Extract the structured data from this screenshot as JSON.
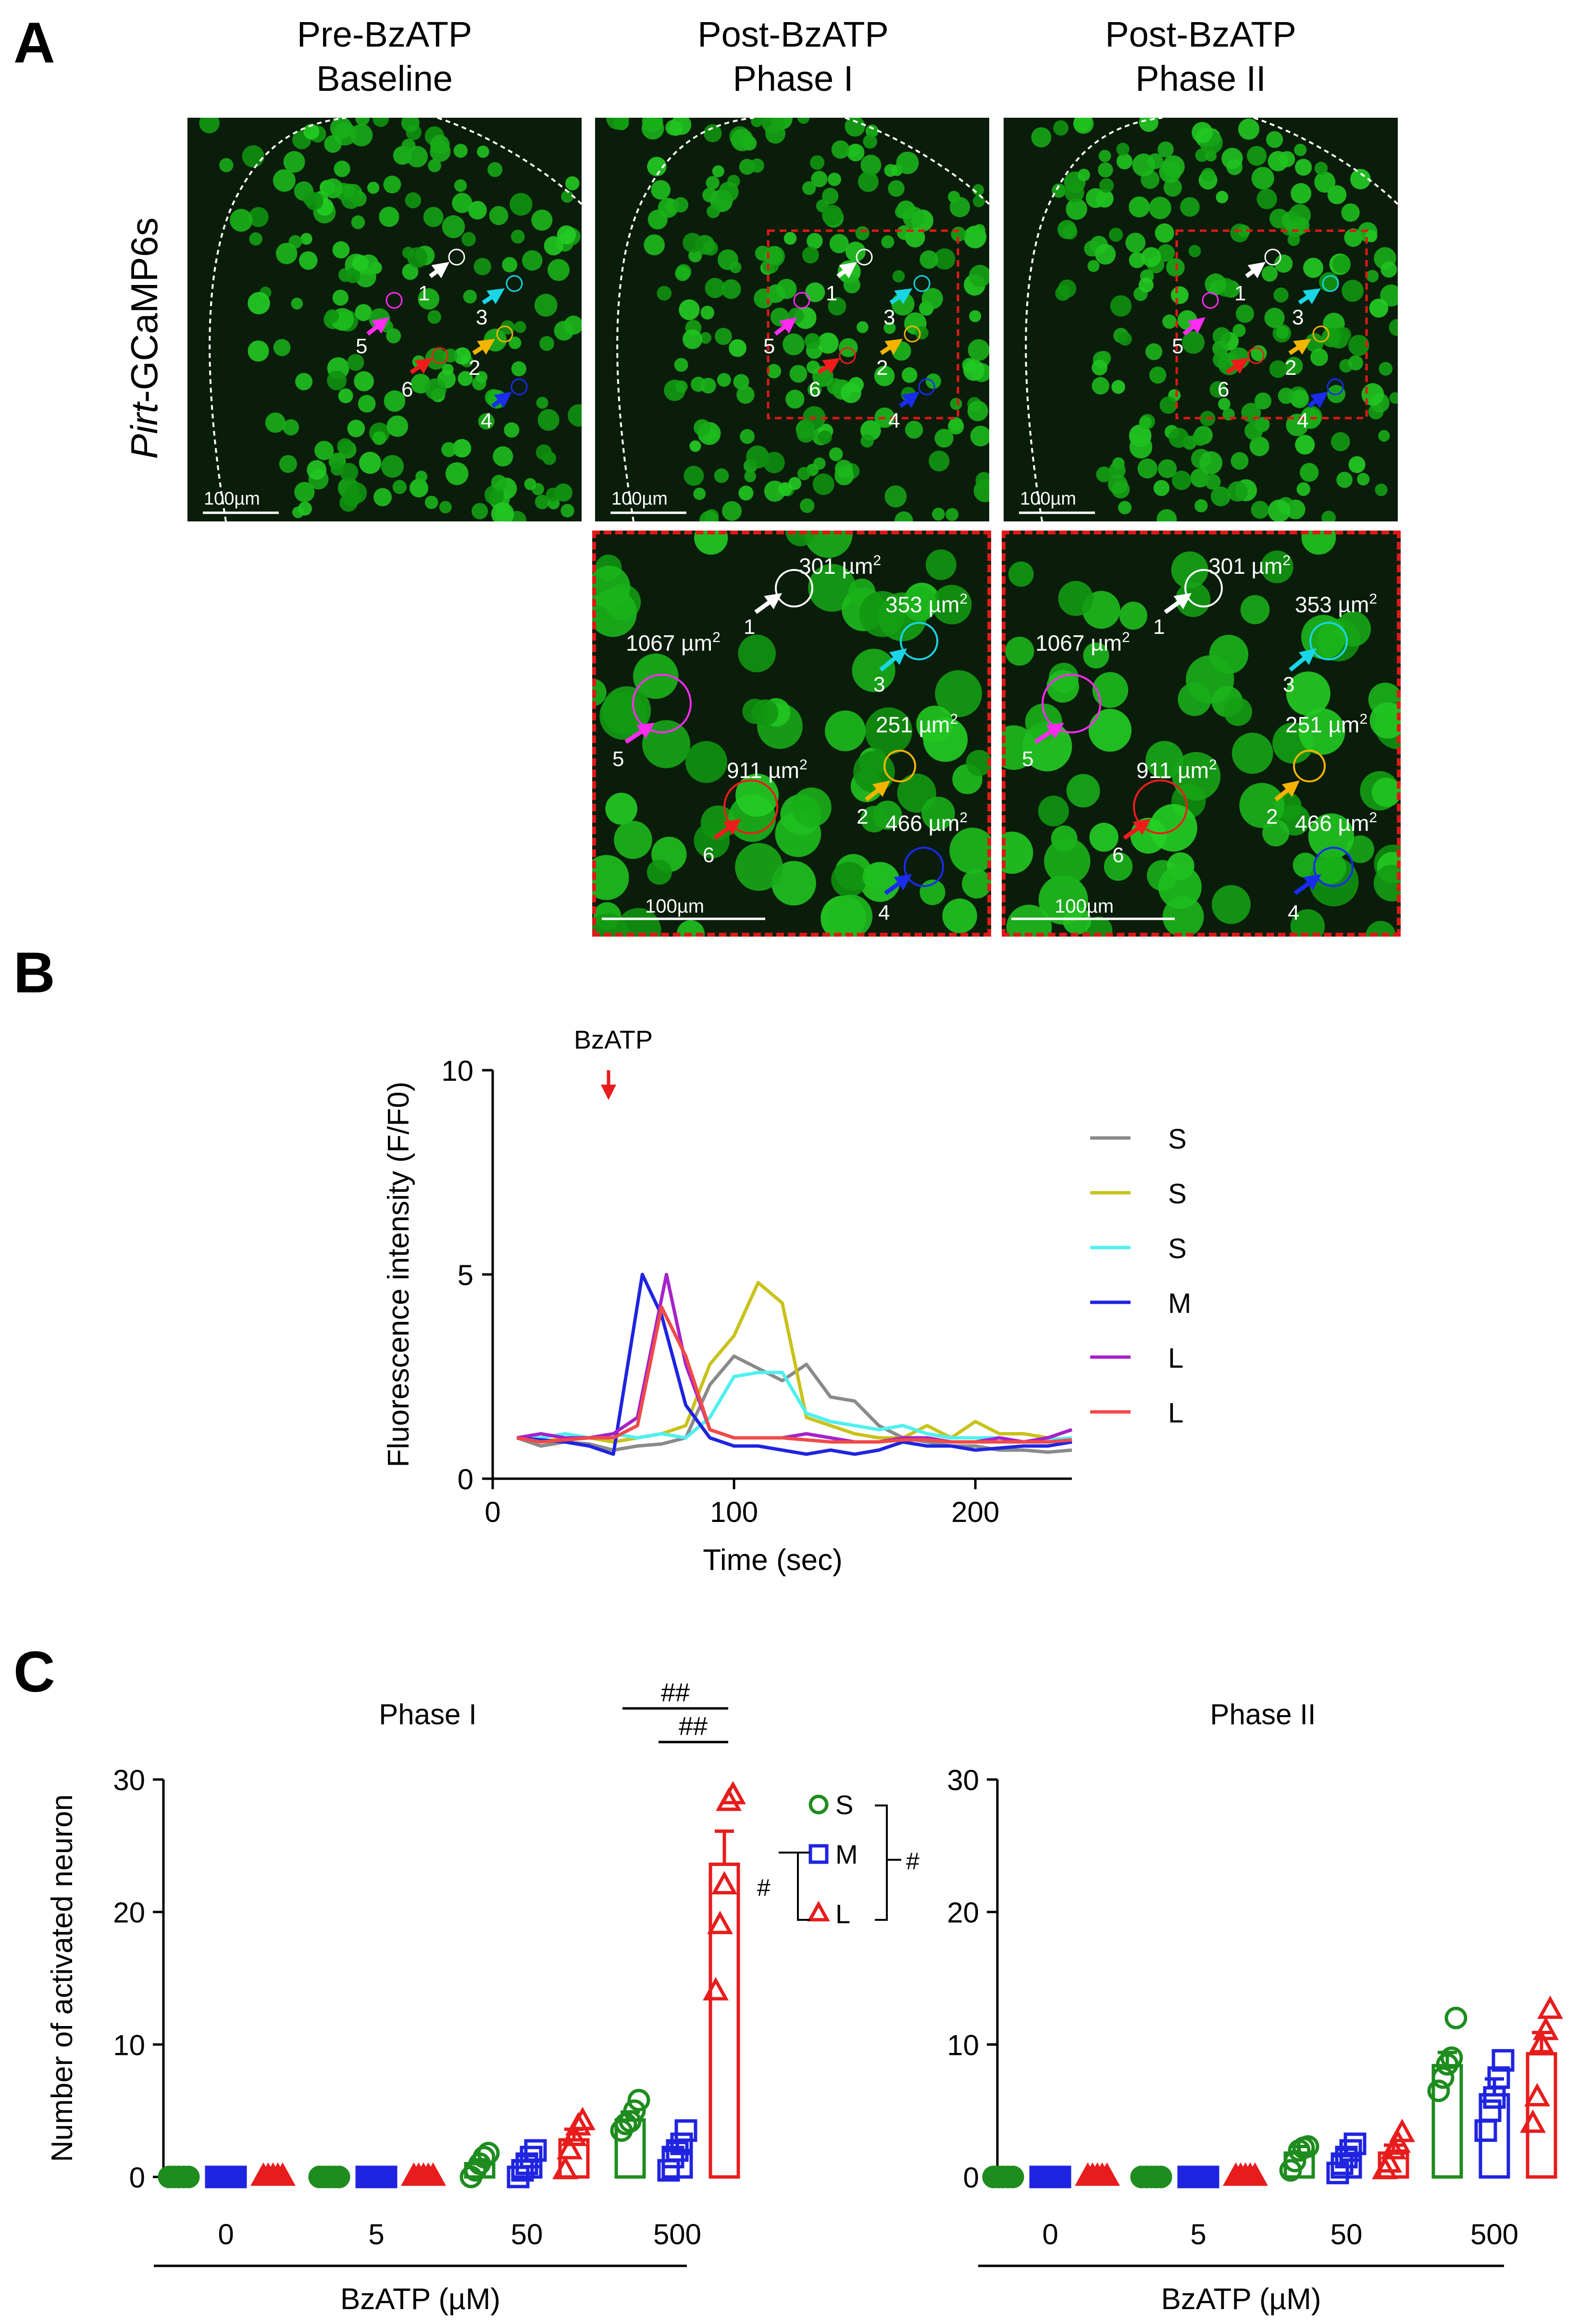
{
  "panels": {
    "a": "A",
    "b": "B",
    "c": "C"
  },
  "panel_a": {
    "row_label_italic": "Pirt",
    "row_label_rest": "-GCaMP6s",
    "columns": [
      {
        "line1": "Pre-BzATP",
        "line2": "Baseline"
      },
      {
        "line1": "Post-BzATP",
        "line2": "Phase I"
      },
      {
        "line1": "Post-BzATP",
        "line2": "Phase II"
      }
    ],
    "scale_bar": "100µm",
    "neuron_numbers": [
      "1",
      "2",
      "3",
      "4",
      "5",
      "6"
    ],
    "areas": {
      "n1": "301 µm",
      "n3": "353 µm",
      "n2": "251 µm",
      "n4": "466 µm",
      "n5": "1067 µm",
      "n6": "911 µm"
    },
    "area_superscript": "2",
    "colors": {
      "n1": "#ffffff",
      "n2": "#f5b400",
      "n3": "#19d6e6",
      "n4": "#1a2cf0",
      "n5": "#ff2bf2",
      "n6": "#f01c1c",
      "tissue": "#1f7d1f",
      "box": "#e01818"
    }
  },
  "chart_data": [
    {
      "type": "line",
      "title": "",
      "xlabel": "Time (sec)",
      "ylabel": "Fluorescence intensity (F/F0)",
      "xlim": [
        0,
        240
      ],
      "ylim": [
        0,
        10
      ],
      "xticks": [
        0,
        100,
        200
      ],
      "yticks": [
        0,
        5,
        10
      ],
      "annotation": {
        "label": "BzATP",
        "x": 48,
        "color": "#e81c1c"
      },
      "legend_position": "right",
      "series": [
        {
          "name": "S",
          "color": "#8a8a8a",
          "x": [
            10,
            20,
            30,
            40,
            50,
            60,
            70,
            80,
            90,
            100,
            110,
            120,
            130,
            140,
            150,
            160,
            170,
            180,
            190,
            200,
            210,
            220,
            230,
            240
          ],
          "y": [
            1.0,
            0.8,
            0.9,
            0.85,
            0.7,
            0.8,
            0.85,
            1.0,
            2.3,
            3.0,
            2.7,
            2.4,
            2.8,
            2.0,
            1.9,
            1.3,
            1.0,
            0.9,
            0.8,
            0.8,
            0.7,
            0.7,
            0.65,
            0.7
          ]
        },
        {
          "name": "S",
          "color": "#c9c21a",
          "x": [
            10,
            20,
            30,
            40,
            50,
            60,
            70,
            80,
            90,
            100,
            110,
            120,
            130,
            140,
            150,
            160,
            170,
            180,
            190,
            200,
            210,
            220,
            230,
            240
          ],
          "y": [
            1.0,
            0.9,
            1.0,
            1.0,
            0.9,
            1.0,
            1.1,
            1.3,
            2.8,
            3.5,
            4.8,
            4.3,
            1.5,
            1.3,
            1.1,
            1.0,
            1.0,
            1.3,
            1.0,
            1.4,
            1.1,
            1.1,
            1.0,
            0.9
          ]
        },
        {
          "name": "S",
          "color": "#4ff0f0",
          "x": [
            10,
            20,
            30,
            40,
            50,
            60,
            70,
            80,
            90,
            100,
            110,
            120,
            130,
            140,
            150,
            160,
            170,
            180,
            190,
            200,
            210,
            220,
            230,
            240
          ],
          "y": [
            1.0,
            1.0,
            1.1,
            1.0,
            1.1,
            1.0,
            1.1,
            1.0,
            1.5,
            2.5,
            2.6,
            2.6,
            1.6,
            1.4,
            1.3,
            1.2,
            1.3,
            1.1,
            1.0,
            1.0,
            1.0,
            0.9,
            0.95,
            1.0
          ]
        },
        {
          "name": "M",
          "color": "#1f24e0",
          "x": [
            10,
            20,
            30,
            40,
            50,
            62,
            70,
            80,
            90,
            100,
            110,
            120,
            130,
            140,
            150,
            160,
            170,
            180,
            190,
            200,
            210,
            220,
            230,
            240
          ],
          "y": [
            1.0,
            0.95,
            0.9,
            0.8,
            0.6,
            5.0,
            4.0,
            1.8,
            1.0,
            0.8,
            0.8,
            0.7,
            0.6,
            0.7,
            0.6,
            0.7,
            0.9,
            0.8,
            0.8,
            0.7,
            0.75,
            0.8,
            0.8,
            0.9
          ]
        },
        {
          "name": "L",
          "color": "#a622c9",
          "x": [
            10,
            20,
            30,
            40,
            50,
            60,
            72,
            80,
            90,
            100,
            110,
            120,
            130,
            140,
            150,
            160,
            170,
            180,
            190,
            200,
            210,
            220,
            230,
            240
          ],
          "y": [
            1.0,
            1.1,
            1.0,
            1.0,
            1.1,
            1.5,
            5.0,
            2.8,
            1.2,
            1.0,
            1.0,
            1.0,
            1.1,
            1.0,
            0.9,
            0.9,
            1.0,
            1.0,
            0.9,
            0.9,
            1.0,
            0.9,
            1.0,
            1.2
          ]
        },
        {
          "name": "L",
          "color": "#f04a4a",
          "x": [
            10,
            20,
            30,
            40,
            50,
            60,
            70,
            80,
            90,
            100,
            110,
            120,
            130,
            140,
            150,
            160,
            170,
            180,
            190,
            200,
            210,
            220,
            230,
            240
          ],
          "y": [
            1.0,
            0.9,
            0.95,
            1.0,
            1.0,
            1.3,
            4.2,
            3.0,
            1.2,
            1.0,
            1.0,
            1.0,
            0.95,
            0.9,
            0.9,
            0.9,
            0.95,
            0.95,
            0.9,
            0.9,
            0.9,
            0.9,
            0.9,
            0.95
          ]
        }
      ]
    },
    {
      "type": "bar",
      "title": "Phase I",
      "xlabel": "BzATP (µM)",
      "ylabel": "Number of activated neuron",
      "ylim": [
        0,
        30
      ],
      "yticks": [
        0,
        10,
        20,
        30
      ],
      "categories": [
        "0",
        "5",
        "50",
        "500"
      ],
      "series": [
        {
          "name": "S",
          "marker": "circle",
          "color": "#1e8c1e",
          "values": [
            0,
            0,
            1.0,
            4.3
          ],
          "errors": [
            0,
            0,
            0.3,
            0.6
          ],
          "points": [
            [
              0,
              0,
              0,
              0,
              0
            ],
            [
              0,
              0,
              0,
              0,
              0
            ],
            [
              0,
              0.5,
              1,
              1.5,
              1.8
            ],
            [
              3.5,
              4,
              4.2,
              5,
              5.8
            ]
          ]
        },
        {
          "name": "M",
          "marker": "square",
          "color": "#1f24e0",
          "values": [
            0,
            0,
            1.2,
            2.0
          ],
          "errors": [
            0,
            0,
            0.4,
            0.6
          ],
          "points": [
            [
              0,
              0,
              0,
              0,
              0
            ],
            [
              0,
              0,
              0,
              0,
              0
            ],
            [
              0,
              0.5,
              1,
              1.5,
              2
            ],
            [
              0.5,
              1.5,
              2,
              2.5,
              3.5
            ]
          ]
        },
        {
          "name": "L",
          "marker": "triangle",
          "color": "#e81c1c",
          "values": [
            0,
            0,
            2.8,
            23.6
          ],
          "errors": [
            0,
            0,
            0.8,
            2.5
          ],
          "points": [
            [
              0,
              0,
              0,
              0,
              0
            ],
            [
              0,
              0,
              0,
              0,
              0
            ],
            [
              0.5,
              2,
              3,
              3.8,
              4.2
            ],
            [
              14,
              19,
              22,
              28.3,
              28.8
            ]
          ]
        }
      ],
      "significance": [
        "##",
        "##"
      ]
    },
    {
      "type": "bar",
      "title": "Phase II",
      "xlabel": "BzATP (µM)",
      "ylabel": "",
      "ylim": [
        0,
        30
      ],
      "yticks": [
        0,
        10,
        20,
        30
      ],
      "categories": [
        "0",
        "5",
        "50",
        "500"
      ],
      "series": [
        {
          "name": "S",
          "marker": "circle",
          "color": "#1e8c1e",
          "values": [
            0,
            0,
            1.8,
            8.4
          ],
          "errors": [
            0,
            0,
            0.5,
            1.0
          ],
          "points": [
            [
              0,
              0,
              0,
              0,
              0
            ],
            [
              0,
              0,
              0,
              0,
              0
            ],
            [
              0.5,
              1.2,
              2,
              2.2,
              2.3
            ],
            [
              6.5,
              7.5,
              8.5,
              9,
              12
            ]
          ]
        },
        {
          "name": "M",
          "marker": "square",
          "color": "#1f24e0",
          "values": [
            0,
            0,
            1.6,
            6.2
          ],
          "errors": [
            0,
            0,
            0.5,
            1.2
          ],
          "points": [
            [
              0,
              0,
              0,
              0,
              0
            ],
            [
              0,
              0,
              0,
              0,
              0
            ],
            [
              0.3,
              1,
              1.5,
              2,
              2.5
            ],
            [
              3.5,
              5,
              6,
              7.5,
              8.8
            ]
          ]
        },
        {
          "name": "L",
          "marker": "triangle",
          "color": "#e81c1c",
          "values": [
            0,
            0,
            1.8,
            9.3
          ],
          "errors": [
            0,
            0,
            0.6,
            1.6
          ],
          "points": [
            [
              0,
              0,
              0,
              0,
              0
            ],
            [
              0,
              0,
              0,
              0,
              0
            ],
            [
              0.5,
              1,
              2,
              2.5,
              3.3
            ],
            [
              4,
              6,
              10,
              11,
              12.6
            ]
          ]
        }
      ]
    }
  ],
  "legend_c": {
    "items": [
      "S",
      "M",
      "L"
    ],
    "hash": "#"
  }
}
